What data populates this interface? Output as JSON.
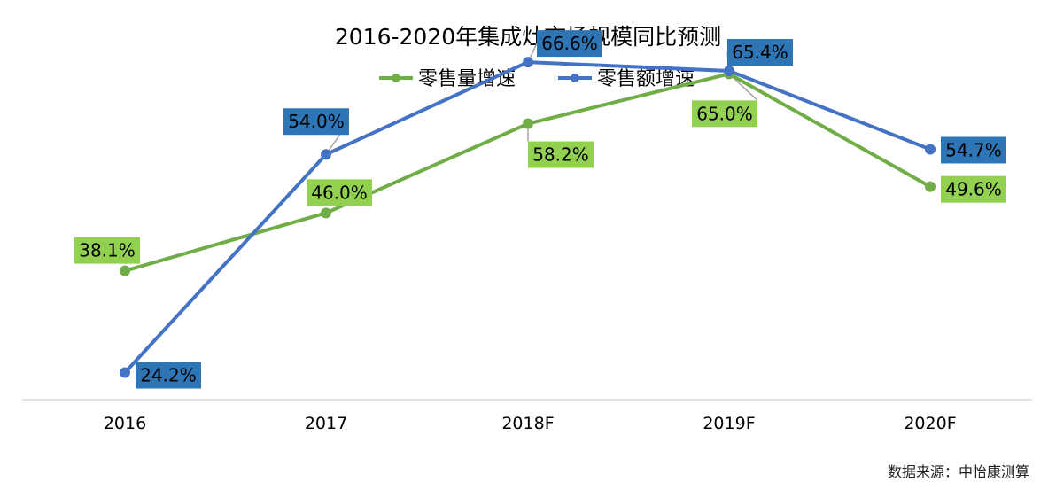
{
  "chart_data": {
    "type": "line",
    "title": "2016-2020年集成灶市场规模同比预测",
    "categories": [
      "2016",
      "2017",
      "2018F",
      "2019F",
      "2020F"
    ],
    "series": [
      {
        "name": "零售量增速",
        "color": "#70ad47",
        "label_bg": "#92d050",
        "values": [
          38.1,
          46.0,
          58.2,
          65.0,
          49.6
        ],
        "labels": [
          "38.1%",
          "46.0%",
          "58.2%",
          "65.0%",
          "49.6%"
        ]
      },
      {
        "name": "零售额增速",
        "color": "#4472c4",
        "label_bg": "#2e75b6",
        "values": [
          24.2,
          54.0,
          66.6,
          65.4,
          54.7
        ],
        "labels": [
          "24.2%",
          "54.0%",
          "66.6%",
          "65.4%",
          "54.7%"
        ]
      }
    ],
    "legend_position": "top",
    "y_axis_visible": false,
    "grid": false
  },
  "source_note": "数据来源：中怡康测算"
}
